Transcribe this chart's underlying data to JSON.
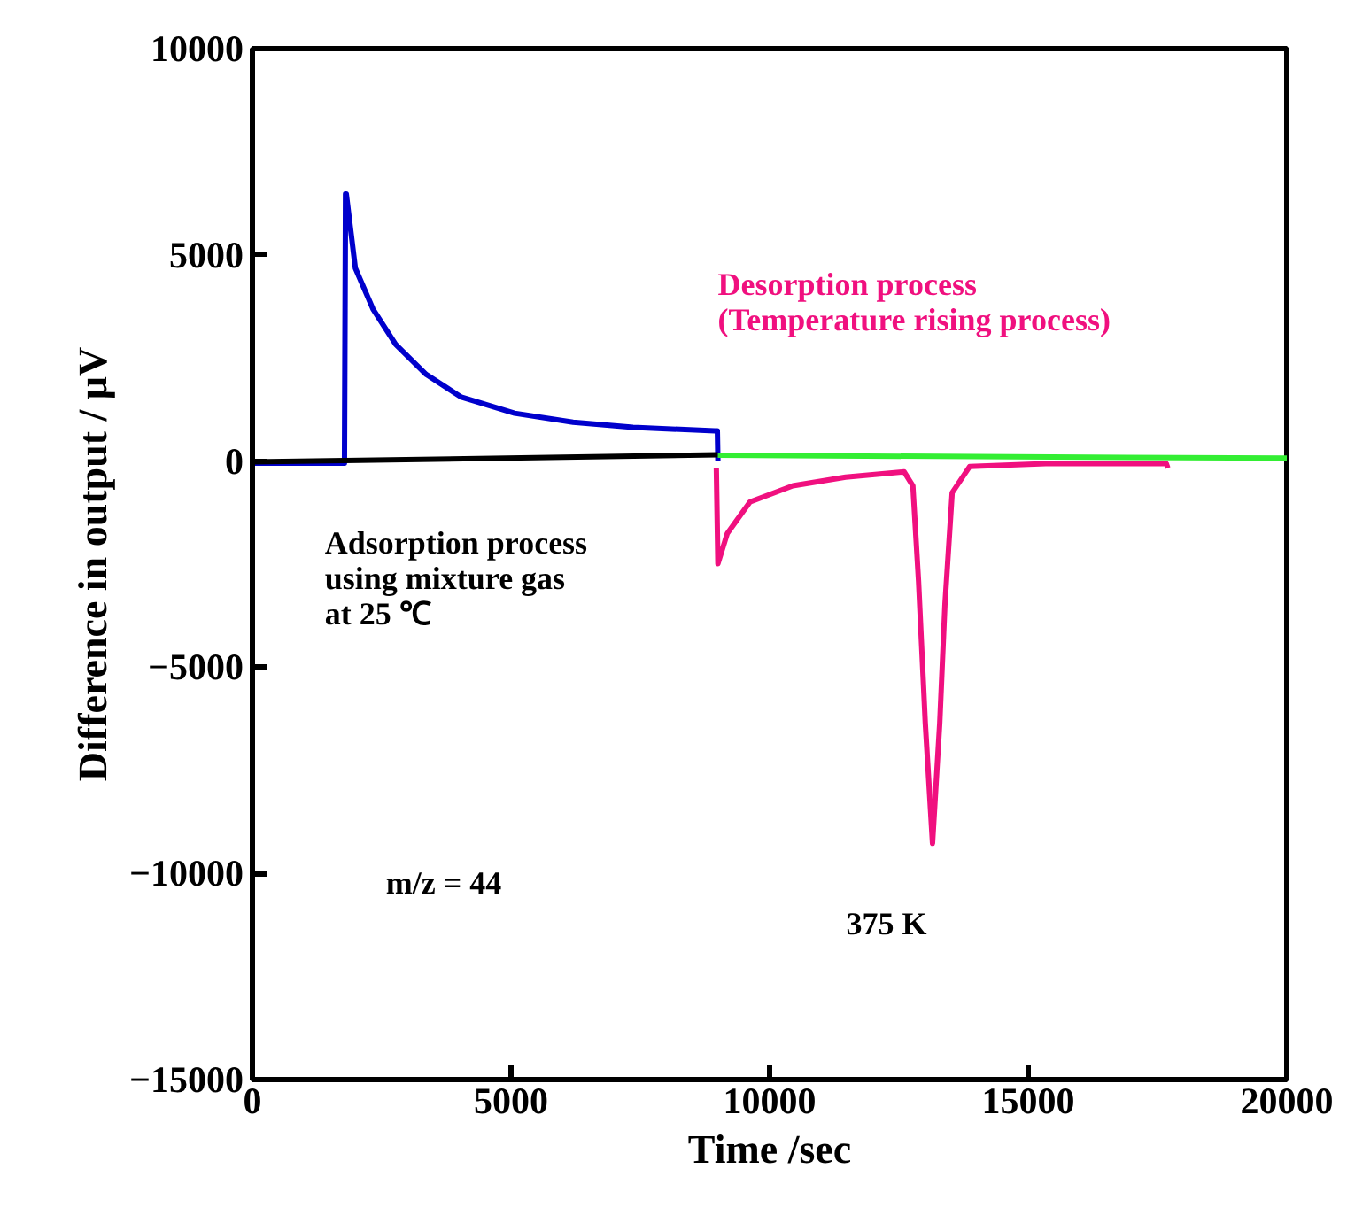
{
  "chart_data": {
    "type": "line",
    "xlabel": "Time /sec",
    "ylabel": "Difference in output / μV",
    "xlim": [
      0,
      20000
    ],
    "ylim": [
      -15000,
      10000
    ],
    "xticks": [
      0,
      5000,
      10000,
      15000,
      20000
    ],
    "yticks": [
      -15000,
      -10000,
      -5000,
      0,
      5000,
      10000
    ],
    "grid": false,
    "marker": "none",
    "line_style": "solid",
    "series": [
      {
        "color": "#0000cc",
        "x": [
          0,
          1780,
          1800,
          1815,
          1990,
          2330,
          2770,
          3360,
          4040,
          5070,
          6200,
          7360,
          8940,
          8990,
          9000
        ],
        "values": [
          -50,
          -50,
          6480,
          6480,
          4680,
          3690,
          2830,
          2100,
          1550,
          1160,
          940,
          820,
          730,
          730,
          0
        ]
      },
      {
        "color": "#000000",
        "x": [
          0,
          9000
        ],
        "values": [
          -20,
          150
        ]
      },
      {
        "color": "#33ee33",
        "x": [
          9000,
          20000
        ],
        "values": [
          140,
          70
        ]
      },
      {
        "color": "#f0107f",
        "x": [
          8970,
          9000,
          9180,
          9620,
          10450,
          11470,
          12600,
          12770,
          12880,
          13010,
          13150,
          13290,
          13390,
          13530,
          13870,
          15340,
          17670,
          17700
        ],
        "values": [
          -170,
          -2490,
          -1760,
          -990,
          -600,
          -390,
          -260,
          -600,
          -2920,
          -6350,
          -9270,
          -6350,
          -3480,
          -770,
          -130,
          -60,
          -60,
          -170
        ]
      }
    ],
    "annotations": [
      "Desorption process\n(Temperature rising process)",
      "Adsorption process\nusing mixture gas\nat 25 ℃",
      "m/z = 44",
      "375 K"
    ]
  }
}
